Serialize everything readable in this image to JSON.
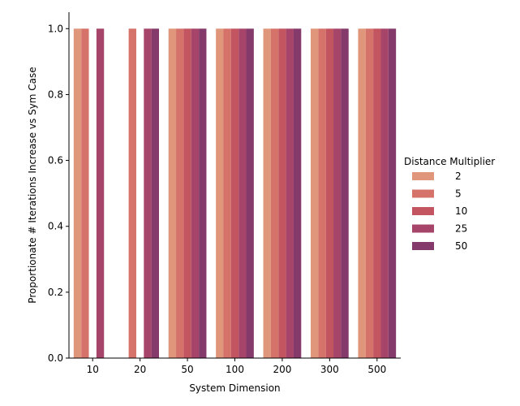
{
  "chart_data": {
    "type": "bar",
    "xlabel": "System Dimension",
    "ylabel": "Proportionate # Iterations Increase vs Sym Case",
    "categories": [
      "10",
      "20",
      "50",
      "100",
      "200",
      "300",
      "500"
    ],
    "ylim": [
      0,
      1.05
    ],
    "yticks": [
      "0.0",
      "0.2",
      "0.4",
      "0.6",
      "0.8",
      "1.0"
    ],
    "grid": false,
    "legend": {
      "title": "Distance Multiplier",
      "placement": "right"
    },
    "series": [
      {
        "name": "2",
        "color": "#e0967a",
        "values": [
          1.0,
          null,
          1.0,
          1.0,
          1.0,
          1.0,
          1.0
        ]
      },
      {
        "name": "5",
        "color": "#d5736b",
        "values": [
          1.0,
          1.0,
          1.0,
          1.0,
          1.0,
          1.0,
          1.0
        ]
      },
      {
        "name": "10",
        "color": "#c2555f",
        "values": [
          null,
          null,
          1.0,
          1.0,
          1.0,
          1.0,
          1.0
        ]
      },
      {
        "name": "25",
        "color": "#a6446a",
        "values": [
          1.0,
          1.0,
          1.0,
          1.0,
          1.0,
          1.0,
          1.0
        ]
      },
      {
        "name": "50",
        "color": "#843a6a",
        "values": [
          null,
          1.0,
          1.0,
          1.0,
          1.0,
          1.0,
          1.0
        ]
      }
    ]
  }
}
